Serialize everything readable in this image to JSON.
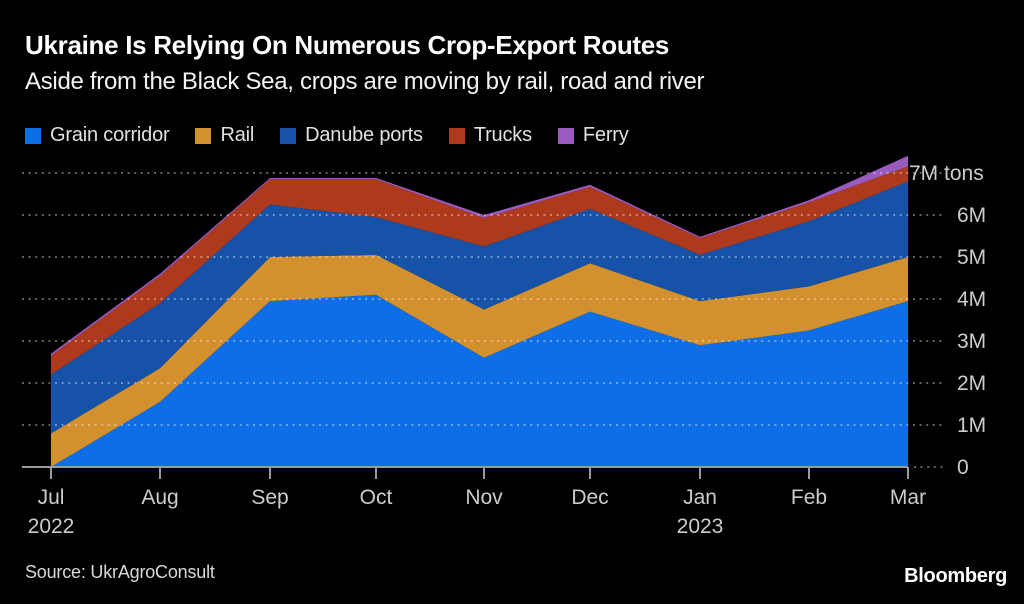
{
  "header": {
    "title": "Ukraine Is Relying On Numerous Crop-Export Routes",
    "subtitle": "Aside from the Black Sea, crops are moving by rail, road and river"
  },
  "legend": {
    "items": [
      {
        "label": "Grain corridor",
        "color": "#0d6ee8"
      },
      {
        "label": "Rail",
        "color": "#d2902e"
      },
      {
        "label": "Danube ports",
        "color": "#1653a8"
      },
      {
        "label": "Trucks",
        "color": "#ae3a1d"
      },
      {
        "label": "Ferry",
        "color": "#9b5abf"
      }
    ]
  },
  "chart_data": {
    "type": "area",
    "stacked": true,
    "title": "Ukraine Is Relying On Numerous Crop-Export Routes",
    "subtitle": "Aside from the Black Sea, crops are moving by rail, road and river",
    "x": [
      "Jul",
      "Aug",
      "Sep",
      "Oct",
      "Nov",
      "Dec",
      "Jan",
      "Feb",
      "Mar"
    ],
    "x_year_labels": [
      {
        "month": "Jul",
        "year": "2022"
      },
      {
        "month": "Jan",
        "year": "2023"
      }
    ],
    "series": [
      {
        "name": "Grain corridor",
        "color": "#0d6ee8",
        "values": [
          0.0,
          1.55,
          3.95,
          4.1,
          2.6,
          3.7,
          2.9,
          3.25,
          3.95
        ]
      },
      {
        "name": "Rail",
        "color": "#d2902e",
        "values": [
          0.8,
          0.8,
          1.05,
          0.95,
          1.15,
          1.15,
          1.05,
          1.05,
          1.05
        ]
      },
      {
        "name": "Danube ports",
        "color": "#1653a8",
        "values": [
          1.4,
          1.55,
          1.25,
          0.9,
          1.5,
          1.3,
          1.1,
          1.55,
          1.8
        ]
      },
      {
        "name": "Trucks",
        "color": "#ae3a1d",
        "values": [
          0.45,
          0.65,
          0.6,
          0.9,
          0.68,
          0.52,
          0.4,
          0.45,
          0.36
        ]
      },
      {
        "name": "Ferry",
        "color": "#9b5abf",
        "values": [
          0.05,
          0.05,
          0.03,
          0.03,
          0.07,
          0.05,
          0.03,
          0.05,
          0.25
        ]
      }
    ],
    "unit": "M tons",
    "ylabels": [
      "0",
      "1M",
      "2M",
      "3M",
      "4M",
      "5M",
      "6M",
      "7M tons"
    ],
    "ylim": [
      0,
      7
    ],
    "grid": "dotted-horizontal",
    "legend_position": "top-left",
    "axis_side": "right"
  },
  "footer": {
    "source": "Source: UkrAgroConsult",
    "brand": "Bloomberg"
  }
}
